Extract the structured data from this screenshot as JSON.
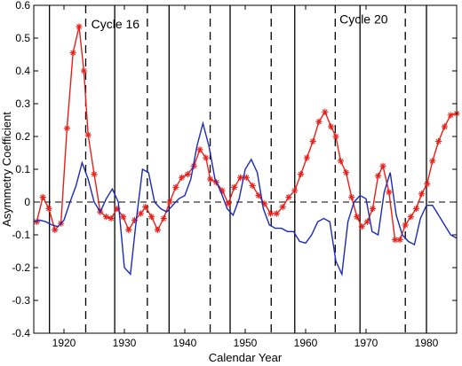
{
  "chart_data": {
    "type": "line",
    "xlabel": "Calendar Year",
    "ylabel": "Asymmetry Coefficient",
    "xlim": [
      1915,
      1985
    ],
    "ylim": [
      -0.4,
      0.6
    ],
    "xticks": [
      1920,
      1930,
      1940,
      1950,
      1960,
      1970,
      1980
    ],
    "yticks": [
      -0.4,
      -0.3,
      -0.2,
      -0.1,
      0,
      0.1,
      0.2,
      0.3,
      0.4,
      0.5,
      0.6
    ],
    "ytick_labels": [
      "-0.4",
      "-0.3",
      "-0.2",
      "-0.1",
      "0",
      "0.1",
      "0.2",
      "0.3",
      "0.4",
      "0.5",
      "0.6"
    ],
    "xtick_labels": [
      "1920",
      "1930",
      "1940",
      "1950",
      "1960",
      "1970",
      "1980"
    ],
    "reference_line_y": 0,
    "solid_vertical_lines": [
      1917.6,
      1928.4,
      1937.4,
      1947.5,
      1958.2,
      1969.0,
      1980.0
    ],
    "dashed_vertical_lines": [
      1923.6,
      1933.8,
      1944.2,
      1954.3,
      1964.9,
      1976.5
    ],
    "annotations": [
      {
        "text": "Cycle 16",
        "x": 1924.5,
        "y": 0.53
      },
      {
        "text": "Cycle 20",
        "x": 1965.6,
        "y": 0.545
      }
    ],
    "series": [
      {
        "color": "#e8201a",
        "marker": "asterisk",
        "x": [
          1915.5,
          1916.5,
          1917.5,
          1918.5,
          1919.5,
          1920.5,
          1921.5,
          1922.5,
          1923.3,
          1924.0,
          1925.0,
          1926.0,
          1927.0,
          1927.8,
          1928.8,
          1929.8,
          1930.7,
          1931.7,
          1932.7,
          1933.5,
          1934.5,
          1935.5,
          1936.5,
          1937.5,
          1938.5,
          1939.5,
          1940.5,
          1941.5,
          1942.5,
          1943.5,
          1944.2,
          1945.2,
          1946.2,
          1947.2,
          1948.2,
          1949.2,
          1950.2,
          1951.2,
          1952.2,
          1953.2,
          1954.2,
          1955.2,
          1956.2,
          1957.2,
          1958.2,
          1959.2,
          1960.2,
          1961.2,
          1962.2,
          1963.2,
          1964.2,
          1965.0,
          1965.8,
          1966.7,
          1967.6,
          1968.5,
          1969.3,
          1970.2,
          1971.1,
          1972.0,
          1972.8,
          1973.8,
          1974.8,
          1975.6,
          1976.5,
          1977.4,
          1978.3,
          1979.2,
          1980.1,
          1981.0,
          1982.0,
          1983.0,
          1984.0,
          1985.0
        ],
        "y": [
          -0.06,
          0.015,
          -0.02,
          -0.085,
          -0.065,
          0.225,
          0.455,
          0.535,
          0.4,
          0.205,
          0.085,
          -0.03,
          -0.045,
          -0.05,
          -0.02,
          -0.045,
          -0.085,
          -0.055,
          -0.035,
          -0.015,
          -0.045,
          -0.085,
          -0.05,
          0.0,
          0.045,
          0.075,
          0.085,
          0.11,
          0.16,
          0.135,
          0.07,
          0.06,
          0.035,
          -0.005,
          0.045,
          0.075,
          0.075,
          0.05,
          0.02,
          -0.005,
          -0.035,
          -0.035,
          -0.015,
          0.015,
          0.035,
          0.085,
          0.135,
          0.185,
          0.245,
          0.275,
          0.23,
          0.2,
          0.125,
          0.09,
          0.015,
          -0.045,
          -0.075,
          -0.06,
          -0.02,
          0.08,
          0.11,
          0.03,
          -0.115,
          -0.115,
          -0.07,
          -0.045,
          -0.02,
          0.025,
          0.055,
          0.125,
          0.185,
          0.23,
          0.265,
          0.27
        ]
      },
      {
        "color": "#1c2ab8",
        "marker": "none",
        "x": [
          1915.0,
          1916.0,
          1917.0,
          1918.0,
          1919.0,
          1920.0,
          1921.0,
          1922.0,
          1923.0,
          1924.0,
          1925.0,
          1926.0,
          1927.0,
          1928.0,
          1929.0,
          1930.0,
          1931.0,
          1932.0,
          1933.0,
          1934.0,
          1935.0,
          1936.0,
          1937.0,
          1938.0,
          1939.0,
          1940.0,
          1941.0,
          1942.0,
          1943.0,
          1944.0,
          1945.0,
          1946.0,
          1947.0,
          1948.0,
          1949.0,
          1950.0,
          1951.0,
          1952.0,
          1953.0,
          1954.0,
          1955.0,
          1956.0,
          1957.0,
          1958.0,
          1959.0,
          1960.0,
          1961.0,
          1962.0,
          1963.0,
          1964.0,
          1965.0,
          1966.0,
          1967.0,
          1968.0,
          1969.0,
          1970.0,
          1971.0,
          1972.0,
          1973.0,
          1974.0,
          1975.0,
          1976.0,
          1977.0,
          1978.0,
          1979.0,
          1980.0,
          1981.0,
          1982.0,
          1983.0,
          1984.0,
          1985.0
        ],
        "y": [
          -0.06,
          -0.055,
          -0.06,
          -0.07,
          -0.075,
          -0.055,
          0.0,
          0.05,
          0.12,
          0.07,
          0.0,
          -0.03,
          0.01,
          0.04,
          0.0,
          -0.2,
          -0.22,
          -0.05,
          0.1,
          0.09,
          0.0,
          -0.02,
          -0.03,
          -0.01,
          0.01,
          0.02,
          0.07,
          0.17,
          0.24,
          0.17,
          0.07,
          0.03,
          -0.02,
          -0.04,
          0.01,
          0.1,
          0.13,
          0.09,
          -0.02,
          -0.07,
          -0.08,
          -0.08,
          -0.09,
          -0.09,
          -0.12,
          -0.125,
          -0.1,
          -0.06,
          -0.05,
          -0.06,
          -0.18,
          -0.22,
          -0.06,
          0.0,
          0.02,
          0.01,
          -0.09,
          -0.1,
          0.03,
          0.09,
          -0.04,
          -0.1,
          -0.12,
          -0.13,
          -0.05,
          -0.01,
          -0.01,
          -0.04,
          -0.07,
          -0.1,
          -0.11
        ]
      }
    ]
  }
}
